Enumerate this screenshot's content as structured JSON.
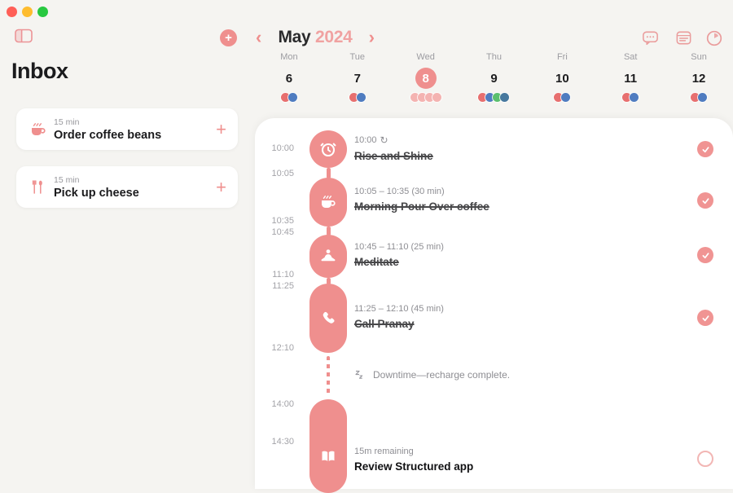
{
  "window": {
    "traffic_lights": [
      "close",
      "minimize",
      "zoom"
    ]
  },
  "colors": {
    "accent": "#EF8F8E",
    "accent_soft": "#F0A2A1",
    "background": "#F5F4F1",
    "card": "#FFFFFF",
    "traffic_lights": [
      "#FF5F57",
      "#FEBC2E",
      "#28C840"
    ],
    "dot_red": "#E76F6F",
    "dot_blue": "#4F7CC0",
    "dot_green": "#5BBF6E",
    "dot_steel": "#47789E",
    "dot_pale_pink": "#F4B3B1"
  },
  "ui": {
    "plus": "+",
    "chevron_left": "‹",
    "chevron_right": "›",
    "repeat": "↻"
  },
  "sidebar": {
    "title": "Inbox",
    "tasks": [
      {
        "icon": "coffee-icon",
        "duration": "15 min",
        "title": "Order coffee beans"
      },
      {
        "icon": "cutlery-icon",
        "duration": "15 min",
        "title": "Pick up cheese"
      }
    ]
  },
  "header": {
    "month": "May",
    "year": "2024"
  },
  "week": {
    "days": [
      {
        "name": "Mon",
        "date": "6",
        "selected": false,
        "dots": [
          "#E76F6F",
          "#4F7CC0"
        ]
      },
      {
        "name": "Tue",
        "date": "7",
        "selected": false,
        "dots": [
          "#E76F6F",
          "#4F7CC0"
        ]
      },
      {
        "name": "Wed",
        "date": "8",
        "selected": true,
        "dots": [
          "#F4B3B1",
          "#F4B3B1",
          "#F4B3B1",
          "#F4B3B1"
        ]
      },
      {
        "name": "Thu",
        "date": "9",
        "selected": false,
        "dots": [
          "#E76F6F",
          "#4F7CC0",
          "#5BBF6E",
          "#47789E"
        ]
      },
      {
        "name": "Fri",
        "date": "10",
        "selected": false,
        "dots": [
          "#E76F6F",
          "#4F7CC0"
        ]
      },
      {
        "name": "Sat",
        "date": "11",
        "selected": false,
        "dots": [
          "#E76F6F",
          "#4F7CC0"
        ]
      },
      {
        "name": "Sun",
        "date": "12",
        "selected": false,
        "dots": [
          "#E76F6F",
          "#4F7CC0"
        ]
      }
    ]
  },
  "timeline": {
    "time_labels": [
      "10:00",
      "10:05",
      "10:35",
      "10:45",
      "11:10",
      "11:25",
      "12:10",
      "14:00",
      "14:30"
    ],
    "tasks": [
      {
        "icon": "alarm-icon",
        "time": "10:00",
        "repeat": true,
        "title": "Rise and Shine",
        "completed": true
      },
      {
        "icon": "coffee-icon",
        "time": "10:05 – 10:35 (30 min)",
        "repeat": false,
        "title": "Morning Pour Over coffee",
        "completed": true
      },
      {
        "icon": "meditation-icon",
        "time": "10:45 – 11:10 (25 min)",
        "repeat": false,
        "title": "Meditate",
        "completed": true
      },
      {
        "icon": "phone-icon",
        "time": "11:25 – 12:10 (45 min)",
        "repeat": false,
        "title": "Call Pranay",
        "completed": true
      },
      {
        "icon": "book-icon",
        "time": "15m remaining",
        "repeat": false,
        "title": "Review Structured app",
        "completed": false
      }
    ],
    "downtime": {
      "text": "Downtime—recharge complete."
    }
  }
}
